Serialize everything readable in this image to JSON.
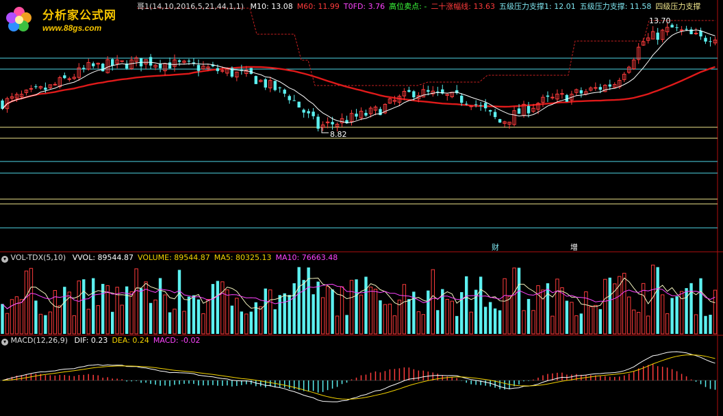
{
  "logo": {
    "title": "分析家公式网",
    "url": "www.88gs.com"
  },
  "main_legend": {
    "indicator": "哥1(14,10,2016,5,21,44,1,1)",
    "items": [
      {
        "label": "M10: 13.08",
        "color": "#ffffff"
      },
      {
        "label": "M60: 11.99",
        "color": "#ff3b3b"
      },
      {
        "label": "T0FD: 3.76",
        "color": "#ff44ff"
      },
      {
        "label": "高位卖点: -",
        "color": "#3cff3c"
      },
      {
        "label": "二十涨幅线: 13.63",
        "color": "#ff3b3b"
      },
      {
        "label": "五级压力支撑1: 12.01",
        "color": "#7fe6f0"
      },
      {
        "label": "五级压力支撑: 11.58",
        "color": "#7fe6f0"
      },
      {
        "label": "四级压力支撑",
        "color": "#f0e68c"
      }
    ]
  },
  "vol_legend": {
    "name": "VOL-TDX(5,10)",
    "items": [
      {
        "label": "VVOL: 89544.87",
        "color": "#ffffff"
      },
      {
        "label": "VOLUME: 89544.87",
        "color": "#f5d400"
      },
      {
        "label": "MA5: 80325.13",
        "color": "#f5d400"
      },
      {
        "label": "MA10: 76663.48",
        "color": "#ff44ff"
      }
    ]
  },
  "macd_legend": {
    "name": "MACD(12,26,9)",
    "items": [
      {
        "label": "DIF: 0.23",
        "color": "#ffffff"
      },
      {
        "label": "DEA: 0.24",
        "color": "#f5d400"
      },
      {
        "label": "MACD: -0.02",
        "color": "#ff44ff"
      }
    ]
  },
  "annotations": {
    "high": "13.70",
    "low": "8.82",
    "event1": "财",
    "event2": "增"
  },
  "colors": {
    "up": "#ff3c3c",
    "down": "#5cf0f0",
    "ma10": "#ffffff",
    "ma60": "#e01a1a",
    "border": "#b01010",
    "cyan_line": "#4fd8e8",
    "yellow_line": "#f0e68c",
    "vol_ma5": "#f5f5c0",
    "vol_ma10": "#ff44ff",
    "dif": "#ffffff",
    "dea": "#f5d400"
  },
  "chart_data": {
    "type": "candlestick",
    "bars": 150,
    "close_profile": [
      [
        0,
        10.0
      ],
      [
        10,
        10.7
      ],
      [
        18,
        11.6
      ],
      [
        30,
        11.9
      ],
      [
        42,
        11.6
      ],
      [
        52,
        11.2
      ],
      [
        60,
        10.3
      ],
      [
        66,
        8.9
      ],
      [
        70,
        9.1
      ],
      [
        78,
        9.6
      ],
      [
        86,
        10.5
      ],
      [
        98,
        10.1
      ],
      [
        104,
        9.1
      ],
      [
        112,
        10.0
      ],
      [
        122,
        10.5
      ],
      [
        128,
        10.9
      ],
      [
        134,
        12.8
      ],
      [
        140,
        13.4
      ],
      [
        146,
        12.9
      ],
      [
        149,
        13.1
      ]
    ],
    "price_range": [
      8.6,
      14.2
    ],
    "support_levels": [
      {
        "value": 12.01,
        "name": "五级压力支撑1"
      },
      {
        "value": 11.58,
        "name": "五级压力支撑"
      }
    ],
    "labels": {
      "high": 13.7,
      "low": 8.82
    }
  }
}
